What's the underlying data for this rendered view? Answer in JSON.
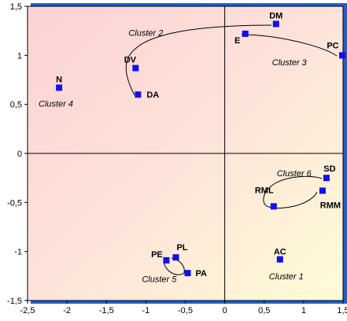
{
  "chart_data": {
    "type": "scatter",
    "title": "",
    "xlabel": "",
    "ylabel": "",
    "xlim": [
      -2.5,
      1.5
    ],
    "ylim": [
      -1.5,
      1.5
    ],
    "grid": false,
    "colors": {
      "marker": "#1010ee",
      "frame_shadow": "#1a5fd6",
      "axis": "#000000"
    },
    "x_ticks": [
      {
        "value": -2.5,
        "label": "-2,5"
      },
      {
        "value": -2,
        "label": "-2"
      },
      {
        "value": -1.5,
        "label": "-1,5"
      },
      {
        "value": -1,
        "label": "-1"
      },
      {
        "value": -0.5,
        "label": "-0,5"
      },
      {
        "value": 0,
        "label": "0"
      },
      {
        "value": 0.5,
        "label": "0,5"
      },
      {
        "value": 1,
        "label": "1"
      },
      {
        "value": 1.5,
        "label": "1,5"
      }
    ],
    "y_ticks": [
      {
        "value": 1.5,
        "label": "1,5"
      },
      {
        "value": 1,
        "label": "1"
      },
      {
        "value": 0.5,
        "label": "0,5"
      },
      {
        "value": 0,
        "label": "0"
      },
      {
        "value": -0.5,
        "label": "-0,5"
      },
      {
        "value": -1,
        "label": "-1"
      },
      {
        "value": -1.5,
        "label": "-1,5"
      }
    ],
    "points": [
      {
        "label": "DM",
        "x": 0.65,
        "y": 1.32
      },
      {
        "label": "E",
        "x": 0.26,
        "y": 1.22
      },
      {
        "label": "PC",
        "x": 1.49,
        "y": 1.0
      },
      {
        "label": "DV",
        "x": -1.13,
        "y": 0.87
      },
      {
        "label": "DA",
        "x": -1.1,
        "y": 0.6
      },
      {
        "label": "N",
        "x": -2.1,
        "y": 0.67
      },
      {
        "label": "SD",
        "x": 1.29,
        "y": -0.25
      },
      {
        "label": "RML",
        "x": 0.62,
        "y": -0.54
      },
      {
        "label": "RMM",
        "x": 1.24,
        "y": -0.38
      },
      {
        "label": "AC",
        "x": 0.7,
        "y": -1.08
      },
      {
        "label": "PE",
        "x": -0.74,
        "y": -1.09
      },
      {
        "label": "PL",
        "x": -0.62,
        "y": -1.06
      },
      {
        "label": "PA",
        "x": -0.47,
        "y": -1.22
      }
    ],
    "clusters": [
      {
        "name": "Cluster 1",
        "x": 0.56,
        "y": -1.25
      },
      {
        "name": "Cluster 2",
        "x": -1.22,
        "y": 1.23
      },
      {
        "name": "Cluster 3",
        "x": 0.6,
        "y": 0.93
      },
      {
        "name": "Cluster 4",
        "x": -2.36,
        "y": 0.51
      },
      {
        "name": "Cluster 5",
        "x": -1.05,
        "y": -1.28
      },
      {
        "name": "Cluster 6",
        "x": 0.66,
        "y": -0.2
      }
    ]
  }
}
